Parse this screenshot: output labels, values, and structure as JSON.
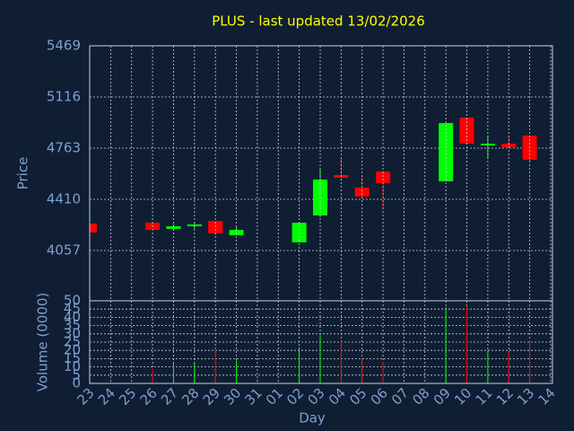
{
  "chart_data": {
    "type": "candlestick",
    "title": "PLUS - last updated 13/02/2026",
    "ylabel": "Price",
    "volume_label": "Volume (0000)",
    "xlabel": "Day",
    "categories": [
      "23",
      "24",
      "25",
      "26",
      "27",
      "28",
      "29",
      "30",
      "31",
      "01",
      "02",
      "03",
      "04",
      "05",
      "06",
      "07",
      "08",
      "09",
      "10",
      "11",
      "12",
      "13",
      "14"
    ],
    "open": [
      4243,
      null,
      null,
      4249,
      4206,
      4224,
      4261,
      4162,
      null,
      null,
      4113,
      4299,
      4577,
      4491,
      4602,
      null,
      null,
      4534,
      4974,
      4782,
      4794,
      4850,
      null
    ],
    "high": [
      4243,
      null,
      null,
      4249,
      4237,
      4249,
      4261,
      4218,
      null,
      null,
      4249,
      4627,
      4701,
      4571,
      4602,
      null,
      null,
      4936,
      4974,
      4850,
      4850,
      4850,
      null
    ],
    "low": [
      4181,
      null,
      null,
      4199,
      4199,
      4206,
      4162,
      4162,
      null,
      null,
      4113,
      4286,
      4559,
      4429,
      4348,
      null,
      null,
      4534,
      4794,
      4689,
      4769,
      4670,
      null
    ],
    "close": [
      4181,
      null,
      null,
      4199,
      4224,
      4237,
      4175,
      4199,
      null,
      null,
      4249,
      4546,
      4559,
      4429,
      4521,
      null,
      null,
      4936,
      4794,
      4794,
      4769,
      4683,
      null
    ],
    "volume": [
      null,
      null,
      null,
      9,
      12,
      12,
      21,
      14,
      null,
      null,
      21,
      30,
      26,
      15,
      13,
      null,
      null,
      46,
      47,
      20,
      20,
      26,
      null
    ],
    "up_color": "#00ff00",
    "down_color": "#ff0000",
    "title_color": "#ffff00",
    "ylim": [
      3710,
      5469
    ],
    "yticks": [
      4057,
      4410,
      4763,
      5116,
      5469
    ],
    "volume_ylim": [
      0,
      50
    ],
    "volume_yticks": [
      0,
      5,
      10,
      15,
      20,
      25,
      30,
      35,
      40,
      45,
      50
    ],
    "grid": true
  }
}
